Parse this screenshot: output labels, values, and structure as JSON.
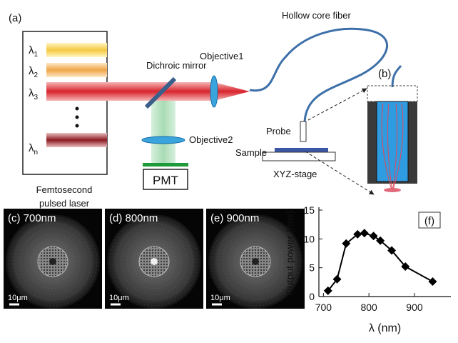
{
  "diagram": {
    "panel_a": "(a)",
    "laser_lines": [
      {
        "symbol": "λ",
        "subscript": "1"
      },
      {
        "symbol": "λ",
        "subscript": "2"
      },
      {
        "symbol": "λ",
        "subscript": "3"
      },
      {
        "symbol": "λ",
        "subscript": "n"
      }
    ],
    "laser_label": [
      "Femtosecond",
      "pulsed laser"
    ],
    "dichroic_mirror": "Dichroic mirror",
    "objective1": "Objective1",
    "objective2": "Objective2",
    "detector": "PMT",
    "fiber": "Hollow core fiber",
    "panel_b": "(b)",
    "probe": "Probe",
    "sample": "Sample",
    "stage": "XYZ-stage"
  },
  "micrographs": [
    {
      "label": "(c) 700nm",
      "scale": "10μm"
    },
    {
      "label": "(d) 800nm",
      "scale": "10μm"
    },
    {
      "label": "(e) 900nm",
      "scale": "10μm"
    }
  ],
  "chart_data": {
    "type": "scatter",
    "panel": "(f)",
    "x_label": "λ (nm)",
    "y_label": "Output power (mw)",
    "x": [
      710,
      730,
      750,
      775,
      790,
      810,
      825,
      850,
      880,
      940
    ],
    "values": [
      1,
      3,
      9.2,
      10.8,
      11,
      10.5,
      9.7,
      8,
      5.2,
      2.6
    ],
    "color": "#000000",
    "xlim": [
      690,
      980
    ],
    "ylim": [
      0,
      15
    ],
    "xticks": [
      700,
      800,
      900
    ],
    "yticks": [
      0,
      5,
      10,
      15
    ]
  }
}
